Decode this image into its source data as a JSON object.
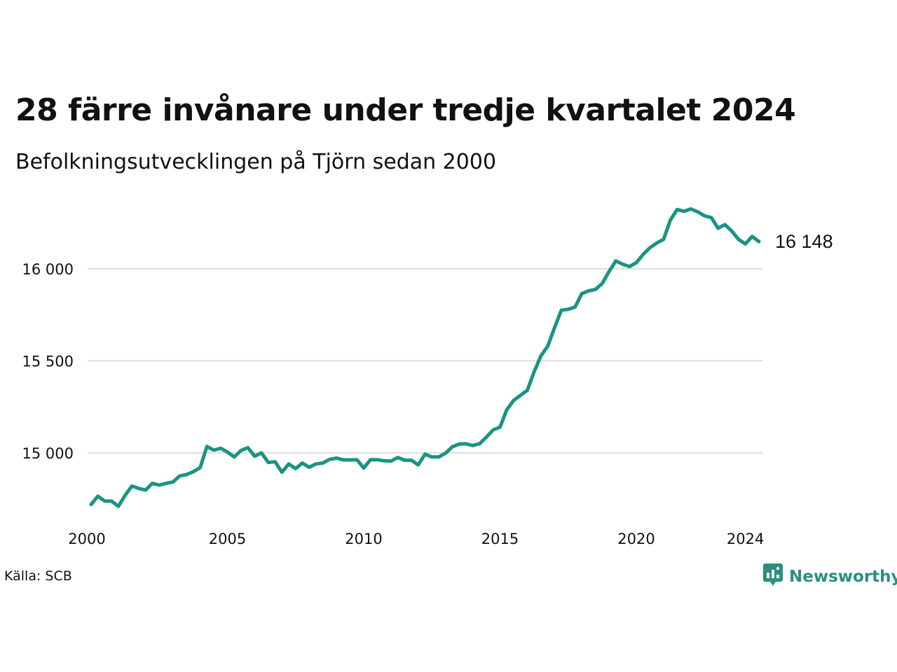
{
  "header": {
    "title": "28 färre invånare under tredje kvartalet 2024",
    "subtitle": "Befolkningsutvecklingen på Tjörn sedan 2000"
  },
  "footer": {
    "source": "Källa: SCB",
    "brand": "Newsworthy",
    "brand_icon": "newsworthy-logo-icon"
  },
  "colors": {
    "line": "#1a9482",
    "grid": "#dddddd",
    "brand": "#2a8f7f",
    "text": "#111111"
  },
  "chart_data": {
    "type": "line",
    "title": "28 färre invånare under tredje kvartalet 2024",
    "subtitle": "Befolkningsutvecklingen på Tjörn sedan 2000",
    "xlabel": "",
    "ylabel": "",
    "xlim": [
      2000.0,
      2024.75
    ],
    "ylim": [
      14700,
      16350
    ],
    "grid": true,
    "legend": "none",
    "y_ticks": [
      15000,
      15500,
      16000
    ],
    "y_tick_labels": [
      "15 000",
      "15 500",
      "16 000"
    ],
    "x_ticks": [
      2000,
      2005,
      2010,
      2015,
      2020,
      2024
    ],
    "x_tick_labels": [
      "2000",
      "2005",
      "2010",
      "2015",
      "2020",
      "2024"
    ],
    "end_label": "16 148",
    "series": [
      {
        "x": [
          2000.0,
          2000.25,
          2000.5,
          2000.75,
          2001.0,
          2001.25,
          2001.5,
          2001.75,
          2002.0,
          2002.25,
          2002.5,
          2002.75,
          2003.0,
          2003.25,
          2003.5,
          2003.75,
          2004.0,
          2004.25,
          2004.5,
          2004.75,
          2005.0,
          2005.25,
          2005.5,
          2005.75,
          2006.0,
          2006.25,
          2006.5,
          2006.75,
          2007.0,
          2007.25,
          2007.5,
          2007.75,
          2008.0,
          2008.25,
          2008.5,
          2008.75,
          2009.0,
          2009.25,
          2009.5,
          2009.75,
          2010.0,
          2010.25,
          2010.5,
          2010.75,
          2011.0,
          2011.25,
          2011.5,
          2011.75,
          2012.0,
          2012.25,
          2012.5,
          2012.75,
          2013.0,
          2013.25,
          2013.5,
          2013.75,
          2014.0,
          2014.25,
          2014.5,
          2014.75,
          2015.0,
          2015.25,
          2015.5,
          2015.75,
          2016.0,
          2016.25,
          2016.5,
          2016.75,
          2017.0,
          2017.25,
          2017.5,
          2017.75,
          2018.0,
          2018.25,
          2018.5,
          2018.75,
          2019.0,
          2019.25,
          2019.5,
          2019.75,
          2020.0,
          2020.25,
          2020.5,
          2020.75,
          2021.0,
          2021.25,
          2021.5,
          2021.75,
          2022.0,
          2022.25,
          2022.5,
          2022.75,
          2023.0,
          2023.25,
          2023.5,
          2023.75,
          2024.0,
          2024.25,
          2024.5
        ],
        "y": [
          14720,
          14765,
          14738,
          14738,
          14710,
          14770,
          14820,
          14807,
          14798,
          14835,
          14825,
          14835,
          14842,
          14875,
          14882,
          14898,
          14920,
          15035,
          15015,
          15025,
          15005,
          14978,
          15013,
          15028,
          14982,
          15000,
          14948,
          14952,
          14895,
          14940,
          14915,
          14945,
          14922,
          14940,
          14945,
          14965,
          14972,
          14962,
          14962,
          14963,
          14918,
          14963,
          14963,
          14957,
          14955,
          14975,
          14960,
          14960,
          14935,
          14993,
          14978,
          14978,
          14998,
          15033,
          15048,
          15050,
          15040,
          15050,
          15085,
          15125,
          15140,
          15235,
          15285,
          15313,
          15340,
          15440,
          15527,
          15580,
          15680,
          15775,
          15780,
          15792,
          15865,
          15880,
          15888,
          15920,
          15985,
          16043,
          16025,
          16012,
          16033,
          16078,
          16115,
          16140,
          16160,
          16265,
          16322,
          16312,
          16325,
          16310,
          16288,
          16278,
          16220,
          16240,
          16205,
          16160,
          16135,
          16176,
          16148
        ]
      }
    ]
  }
}
